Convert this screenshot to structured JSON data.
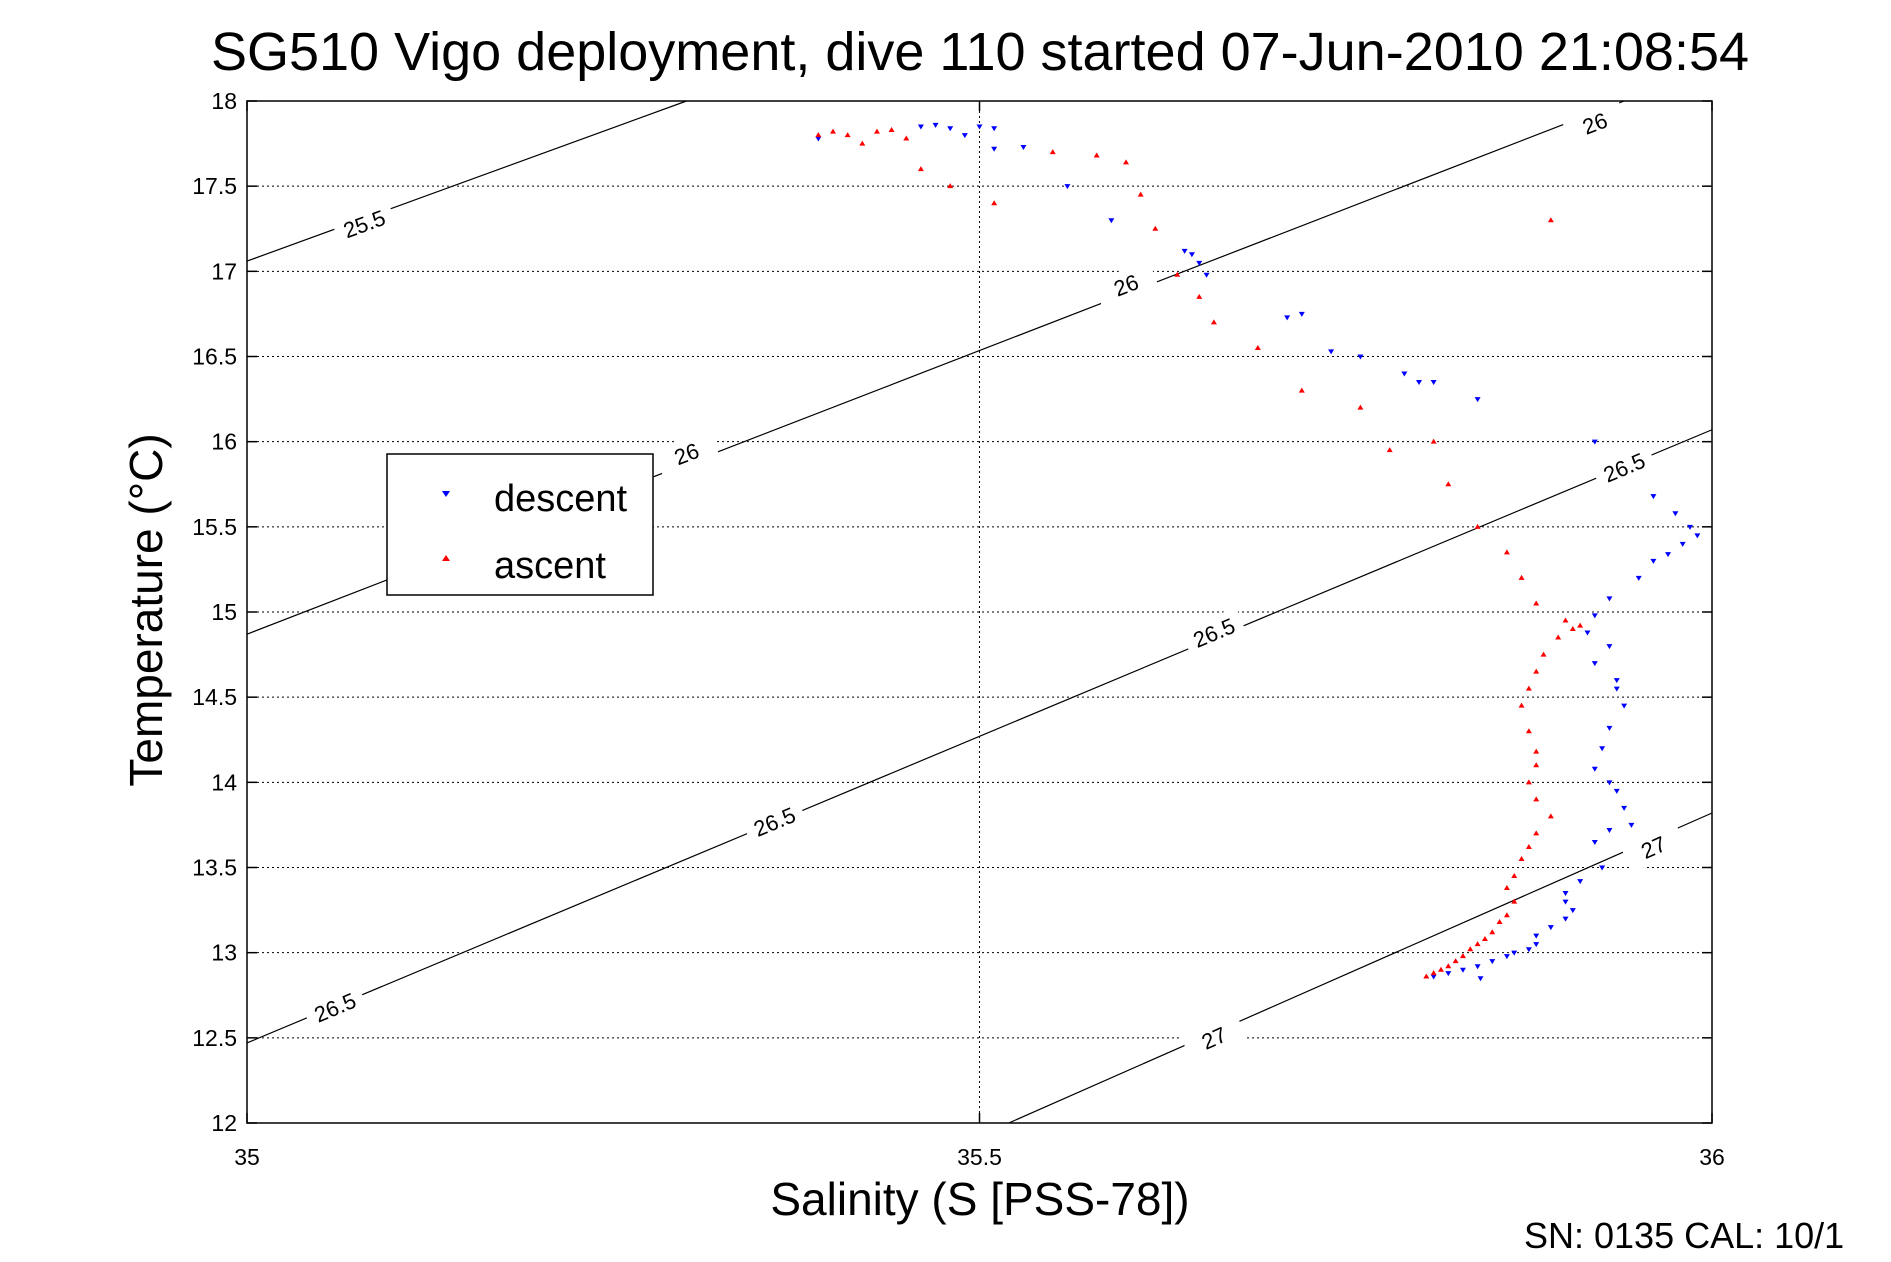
{
  "chart_data": {
    "type": "scatter",
    "title": "SG510 Vigo deployment, dive 110 started 07-Jun-2010 21:08:54",
    "xlabel": "Salinity (S [PSS-78])",
    "ylabel": "Temperature (°C)",
    "footer": "SN: 0135  CAL: 10/1",
    "xlim": [
      35,
      36
    ],
    "ylim": [
      12,
      18
    ],
    "grid": true,
    "legend_position": "center-left",
    "x_ticks": [
      "35",
      "35.5",
      "36"
    ],
    "y_ticks": [
      "12",
      "12.5",
      "13",
      "13.5",
      "14",
      "14.5",
      "15",
      "15.5",
      "16",
      "16.5",
      "17",
      "17.5",
      "18"
    ],
    "isopycnals": [
      {
        "value": "25.5",
        "points": [
          [
            35.0,
            17.06
          ],
          [
            35.3,
            18.0
          ]
        ],
        "labels": [
          [
            35.08,
            17.28
          ]
        ]
      },
      {
        "value": "26",
        "points": [
          [
            35.0,
            14.87
          ],
          [
            35.94,
            18.0
          ]
        ],
        "labels": [
          [
            35.3,
            15.93
          ],
          [
            35.6,
            16.92
          ],
          [
            35.92,
            17.87
          ]
        ]
      },
      {
        "value": "26.5",
        "points": [
          [
            35.0,
            12.47
          ],
          [
            36.0,
            16.07
          ]
        ],
        "labels": [
          [
            35.06,
            12.68
          ],
          [
            35.36,
            13.77
          ],
          [
            35.66,
            14.88
          ],
          [
            35.94,
            15.85
          ]
        ]
      },
      {
        "value": "27",
        "points": [
          [
            35.52,
            12.0
          ],
          [
            36.0,
            13.82
          ]
        ],
        "labels": [
          [
            35.66,
            12.5
          ],
          [
            35.96,
            13.62
          ]
        ]
      }
    ],
    "series": [
      {
        "name": "descent",
        "color": "#0000ff",
        "marker": "triangle-down",
        "x": [
          35.39,
          35.46,
          35.47,
          35.48,
          35.49,
          35.5,
          35.51,
          35.51,
          35.53,
          35.56,
          35.59,
          35.64,
          35.645,
          35.65,
          35.655,
          35.71,
          35.72,
          35.74,
          35.76,
          35.79,
          35.8,
          35.81,
          35.84,
          35.92,
          35.96,
          35.975,
          35.985,
          35.99,
          35.98,
          35.97,
          35.96,
          35.95,
          35.93,
          35.92,
          35.915,
          35.93,
          35.92,
          35.935,
          35.935,
          35.94,
          35.93,
          35.925,
          35.92,
          35.93,
          35.935,
          35.94,
          35.945,
          35.93,
          35.92,
          35.925,
          35.91,
          35.9,
          35.9,
          35.905,
          35.9,
          35.89,
          35.88,
          35.88,
          35.875,
          35.865,
          35.86,
          35.85,
          35.84,
          35.83,
          35.82,
          35.81,
          35.842
        ],
        "y": [
          17.78,
          17.85,
          17.86,
          17.84,
          17.8,
          17.85,
          17.84,
          17.72,
          17.73,
          17.5,
          17.3,
          17.12,
          17.1,
          17.05,
          16.98,
          16.73,
          16.75,
          16.53,
          16.5,
          16.4,
          16.35,
          16.35,
          16.25,
          16.0,
          15.68,
          15.58,
          15.5,
          15.45,
          15.4,
          15.34,
          15.3,
          15.2,
          15.08,
          14.98,
          14.88,
          14.8,
          14.7,
          14.6,
          14.55,
          14.45,
          14.32,
          14.2,
          14.08,
          14.0,
          13.95,
          13.85,
          13.75,
          13.72,
          13.65,
          13.5,
          13.42,
          13.35,
          13.3,
          13.25,
          13.2,
          13.15,
          13.1,
          13.05,
          13.02,
          13.0,
          12.98,
          12.95,
          12.92,
          12.9,
          12.88,
          12.86,
          12.85
        ]
      },
      {
        "name": "ascent",
        "color": "#ff0000",
        "marker": "triangle-up",
        "x": [
          35.39,
          35.4,
          35.41,
          35.42,
          35.43,
          35.44,
          35.45,
          35.46,
          35.48,
          35.51,
          35.55,
          35.58,
          35.6,
          35.61,
          35.62,
          35.635,
          35.65,
          35.66,
          35.69,
          35.72,
          35.76,
          35.78,
          35.81,
          35.82,
          35.84,
          35.86,
          35.87,
          35.88,
          35.9,
          35.91,
          35.905,
          35.895,
          35.885,
          35.88,
          35.875,
          35.87,
          35.875,
          35.88,
          35.88,
          35.875,
          35.88,
          35.89,
          35.88,
          35.875,
          35.87,
          35.865,
          35.86,
          35.865,
          35.86,
          35.855,
          35.85,
          35.845,
          35.84,
          35.835,
          35.83,
          35.825,
          35.82,
          35.815,
          35.81,
          35.805,
          35.89
        ],
        "y": [
          17.8,
          17.82,
          17.8,
          17.75,
          17.82,
          17.83,
          17.78,
          17.6,
          17.5,
          17.4,
          17.7,
          17.68,
          17.64,
          17.45,
          17.25,
          16.98,
          16.85,
          16.7,
          16.55,
          16.3,
          16.2,
          15.95,
          16.0,
          15.75,
          15.5,
          15.35,
          15.2,
          15.05,
          14.95,
          14.92,
          14.9,
          14.85,
          14.75,
          14.65,
          14.55,
          14.45,
          14.3,
          14.18,
          14.1,
          14.0,
          13.9,
          13.8,
          13.7,
          13.62,
          13.55,
          13.45,
          13.38,
          13.3,
          13.22,
          13.18,
          13.12,
          13.08,
          13.05,
          13.02,
          12.98,
          12.95,
          12.92,
          12.9,
          12.88,
          12.86,
          17.3
        ]
      }
    ]
  }
}
